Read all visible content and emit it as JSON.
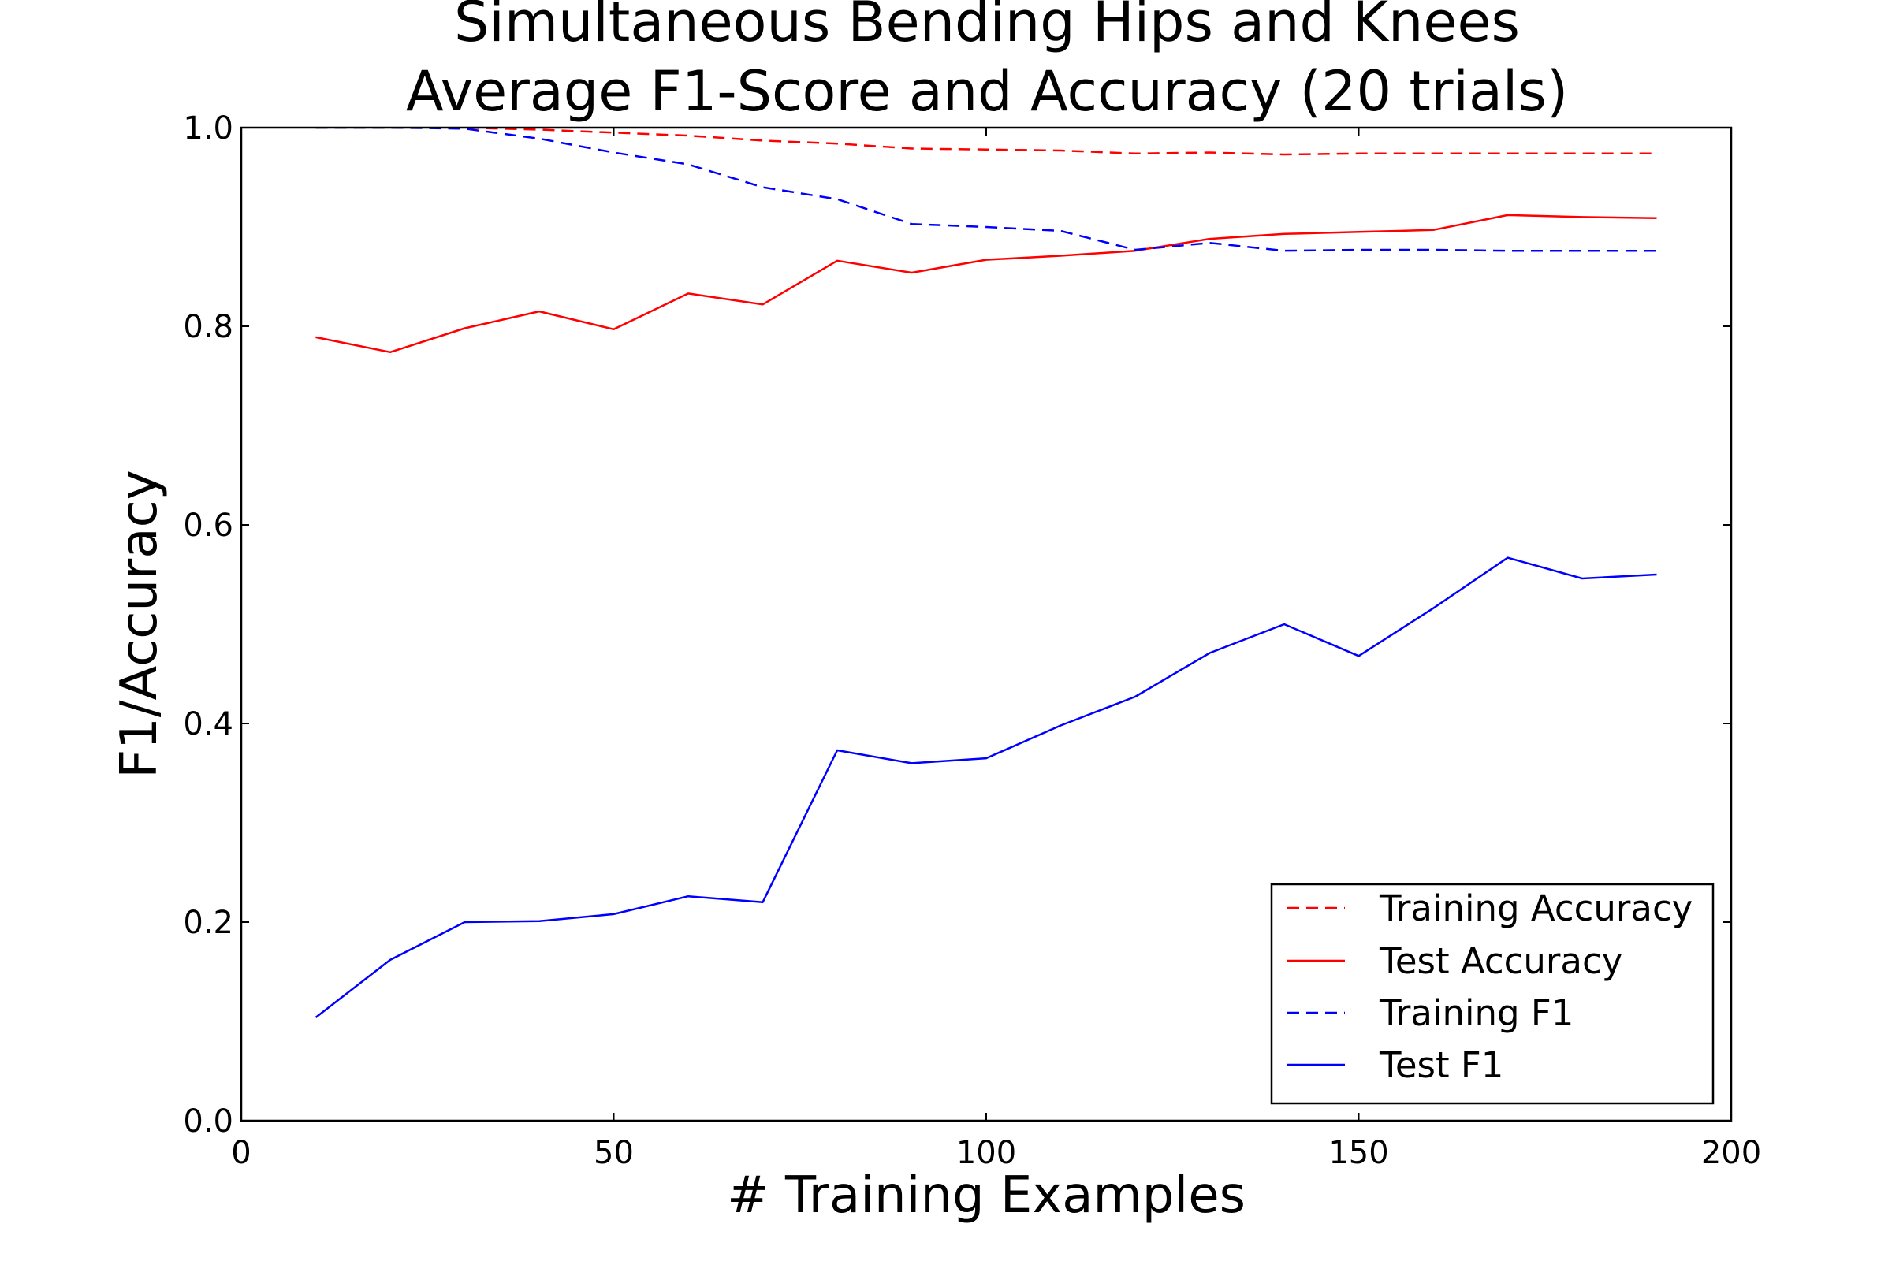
{
  "chart_data": {
    "type": "line",
    "title": [
      "Simultaneous Bending Hips and Knees",
      "Average F1-Score and Accuracy (20 trials)"
    ],
    "xlabel": "# Training Examples",
    "ylabel": "F1/Accuracy",
    "xlim": [
      0,
      200
    ],
    "ylim": [
      0.0,
      1.0
    ],
    "xticks": [
      0,
      50,
      100,
      150,
      200
    ],
    "xtick_labels": [
      "0",
      "50",
      "100",
      "150",
      "200"
    ],
    "yticks": [
      0.0,
      0.2,
      0.4,
      0.6,
      0.8,
      1.0
    ],
    "ytick_labels": [
      "0.0",
      "0.2",
      "0.4",
      "0.6",
      "0.8",
      "1.0"
    ],
    "grid": false,
    "legend_position": "bottom-right",
    "x": [
      10,
      20,
      30,
      40,
      50,
      60,
      70,
      80,
      90,
      100,
      110,
      120,
      130,
      140,
      150,
      160,
      170,
      180,
      190
    ],
    "series": [
      {
        "name": "Training Accuracy",
        "color": "#ff0000",
        "style": "dashed",
        "values": [
          1.0,
          1.0,
          1.0,
          0.998,
          0.995,
          0.992,
          0.987,
          0.984,
          0.979,
          0.978,
          0.977,
          0.974,
          0.975,
          0.973,
          0.974,
          0.974,
          0.974,
          0.974,
          0.974
        ]
      },
      {
        "name": "Test Accuracy",
        "color": "#ff0000",
        "style": "solid",
        "values": [
          0.789,
          0.774,
          0.798,
          0.815,
          0.797,
          0.833,
          0.822,
          0.866,
          0.854,
          0.867,
          0.871,
          0.876,
          0.888,
          0.893,
          0.895,
          0.897,
          0.912,
          0.91,
          0.909
        ]
      },
      {
        "name": "Training F1",
        "color": "#0000ff",
        "style": "dashed",
        "values": [
          1.0,
          1.0,
          0.999,
          0.989,
          0.975,
          0.963,
          0.94,
          0.928,
          0.903,
          0.9,
          0.896,
          0.877,
          0.884,
          0.876,
          0.877,
          0.877,
          0.876,
          0.876,
          0.876
        ]
      },
      {
        "name": "Test F1",
        "color": "#0000ff",
        "style": "solid",
        "values": [
          0.104,
          0.162,
          0.2,
          0.201,
          0.208,
          0.226,
          0.22,
          0.373,
          0.36,
          0.365,
          0.398,
          0.427,
          0.471,
          0.5,
          0.468,
          0.516,
          0.567,
          0.546,
          0.55
        ]
      }
    ]
  }
}
